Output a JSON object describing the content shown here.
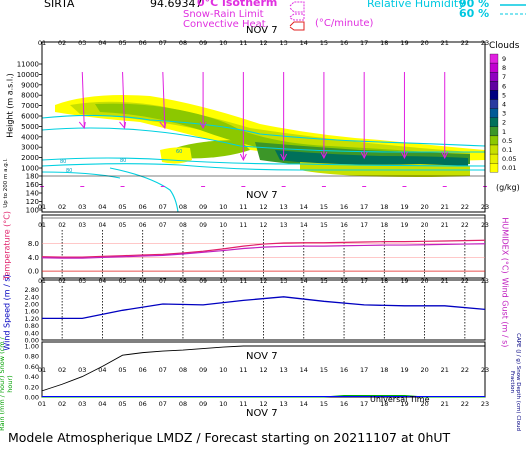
{
  "header": {
    "site": "SIRTA",
    "site_value": "94.69347",
    "legend_iso": "0°C isotherm",
    "legend_snow": "Snow-Rain Limit",
    "legend_conv": "Convective Heat.",
    "legend_conv_unit": "(°C/minute)",
    "legend_rh": "Relative Humidity",
    "rh_90": "90 %",
    "rh_60": "60 %",
    "date_label": "NOV  7"
  },
  "footer": {
    "title": "Modele Atmospherique LMDZ / Forecast starting on 20211107 at 0hUT",
    "universal_time": "Universal Time",
    "date_label": "NOV  7"
  },
  "colors": {
    "cloud_scale": [
      "#ffff00",
      "#c8e000",
      "#8cc800",
      "#3c9628",
      "#00705a",
      "#005a96",
      "#2a3aa0",
      "#000080",
      "#5a00a0",
      "#a000c8",
      "#e000e0"
    ],
    "temp": "#e0206a",
    "humidex": "#c020c0",
    "wind": "#0000c0",
    "rain": "#00b000",
    "snow": "#0000ff",
    "frac": "#000000"
  },
  "chart_data": [
    {
      "type": "heatmap",
      "title": "Clouds",
      "ylabel": "Height (m a.s.l.)",
      "ylabel_low": "Up to 200 m a.g.l.",
      "unit": "(g/kg)",
      "x": [
        "01",
        "02",
        "03",
        "04",
        "05",
        "06",
        "07",
        "08",
        "09",
        "10",
        "11",
        "12",
        "13",
        "14",
        "15",
        "16",
        "17",
        "18",
        "19",
        "20",
        "21",
        "22",
        "23"
      ],
      "y_ticks": [
        "11000",
        "10000",
        "9000",
        "8000",
        "7000",
        "6000",
        "5000",
        "4000",
        "3000",
        "2000",
        "1000",
        "180",
        "160",
        "140",
        "120",
        "100"
      ],
      "colorbar_ticks": [
        "9",
        "8",
        "7",
        "6",
        "5",
        "4",
        "3",
        "2",
        "1",
        "0.5",
        "0.1",
        "0.05",
        "0.01"
      ],
      "isotherm_labels": [
        "80",
        "80",
        "60",
        "80"
      ]
    },
    {
      "type": "line",
      "ylabel": "Temperature (°C)",
      "ylabel_right": "HUMIDEX (°C)",
      "x": [
        1,
        2,
        3,
        4,
        5,
        6,
        7,
        8,
        9,
        10,
        11,
        12,
        13,
        14,
        15,
        16,
        17,
        18,
        19,
        20,
        21,
        22,
        23
      ],
      "y_ticks": [
        "8.0",
        "4.0",
        "0.0"
      ],
      "ylim": [
        -2,
        12
      ],
      "series": [
        {
          "values": [
            4.2,
            4.1,
            4.1,
            4.3,
            4.5,
            4.7,
            4.9,
            5.3,
            5.8,
            6.5,
            7.3,
            7.9,
            8.2,
            8.3,
            8.3,
            8.4,
            8.5,
            8.6,
            8.6,
            8.7,
            8.8,
            8.9,
            9.0
          ]
        },
        {
          "values": [
            3.9,
            3.8,
            3.8,
            4.0,
            4.2,
            4.4,
            4.6,
            5.0,
            5.5,
            6.0,
            6.6,
            7.0,
            7.2,
            7.3,
            7.3,
            7.4,
            7.5,
            7.6,
            7.6,
            7.7,
            7.8,
            7.9,
            8.0
          ]
        }
      ]
    },
    {
      "type": "line",
      "ylabel": "Wind Speed (m / s)",
      "ylabel_right": "Wind Gust (m / s)",
      "x": [
        1,
        3,
        5,
        7,
        9,
        11,
        13,
        15,
        17,
        19,
        21,
        23
      ],
      "y_ticks": [
        "2.80",
        "2.40",
        "2.00",
        "1.60",
        "1.20",
        "0.80",
        "0.40",
        "0.00"
      ],
      "ylim": [
        0,
        3
      ],
      "series": [
        {
          "values": [
            1.2,
            1.2,
            1.65,
            2.0,
            1.95,
            2.2,
            2.4,
            2.15,
            1.95,
            1.9,
            1.9,
            1.7
          ]
        }
      ]
    },
    {
      "type": "line",
      "ylabel": "Rain (mm / hour) Snow (cm / hour)",
      "ylabel_right": "CAPE (J / g) Snow Depth (cm) Cloud Fraction",
      "x": [
        1,
        2,
        3,
        4,
        5,
        6,
        7,
        8,
        9,
        10,
        11,
        12,
        13,
        14,
        15,
        16,
        17,
        18,
        19,
        20,
        21,
        22,
        23
      ],
      "y_ticks": [
        "1.00",
        "0.80",
        "0.60",
        "0.40",
        "0.20",
        "0.00"
      ],
      "ylim": [
        0,
        1
      ],
      "series": [
        {
          "values": [
            0.12,
            0.25,
            0.4,
            0.6,
            0.82,
            0.87,
            0.9,
            0.92,
            0.95,
            0.98,
            1.0,
            1.0,
            1.0,
            1.0,
            1.0,
            1.0,
            1.0,
            1.0,
            1.0,
            1.0,
            1.0,
            1.0,
            1.0
          ]
        },
        {
          "values": [
            0,
            0,
            0,
            0,
            0,
            0,
            0,
            0,
            0,
            0,
            0,
            0,
            0,
            0,
            0,
            0.03,
            0.03,
            0.03,
            0.03,
            0,
            0,
            0,
            0
          ]
        }
      ]
    }
  ]
}
